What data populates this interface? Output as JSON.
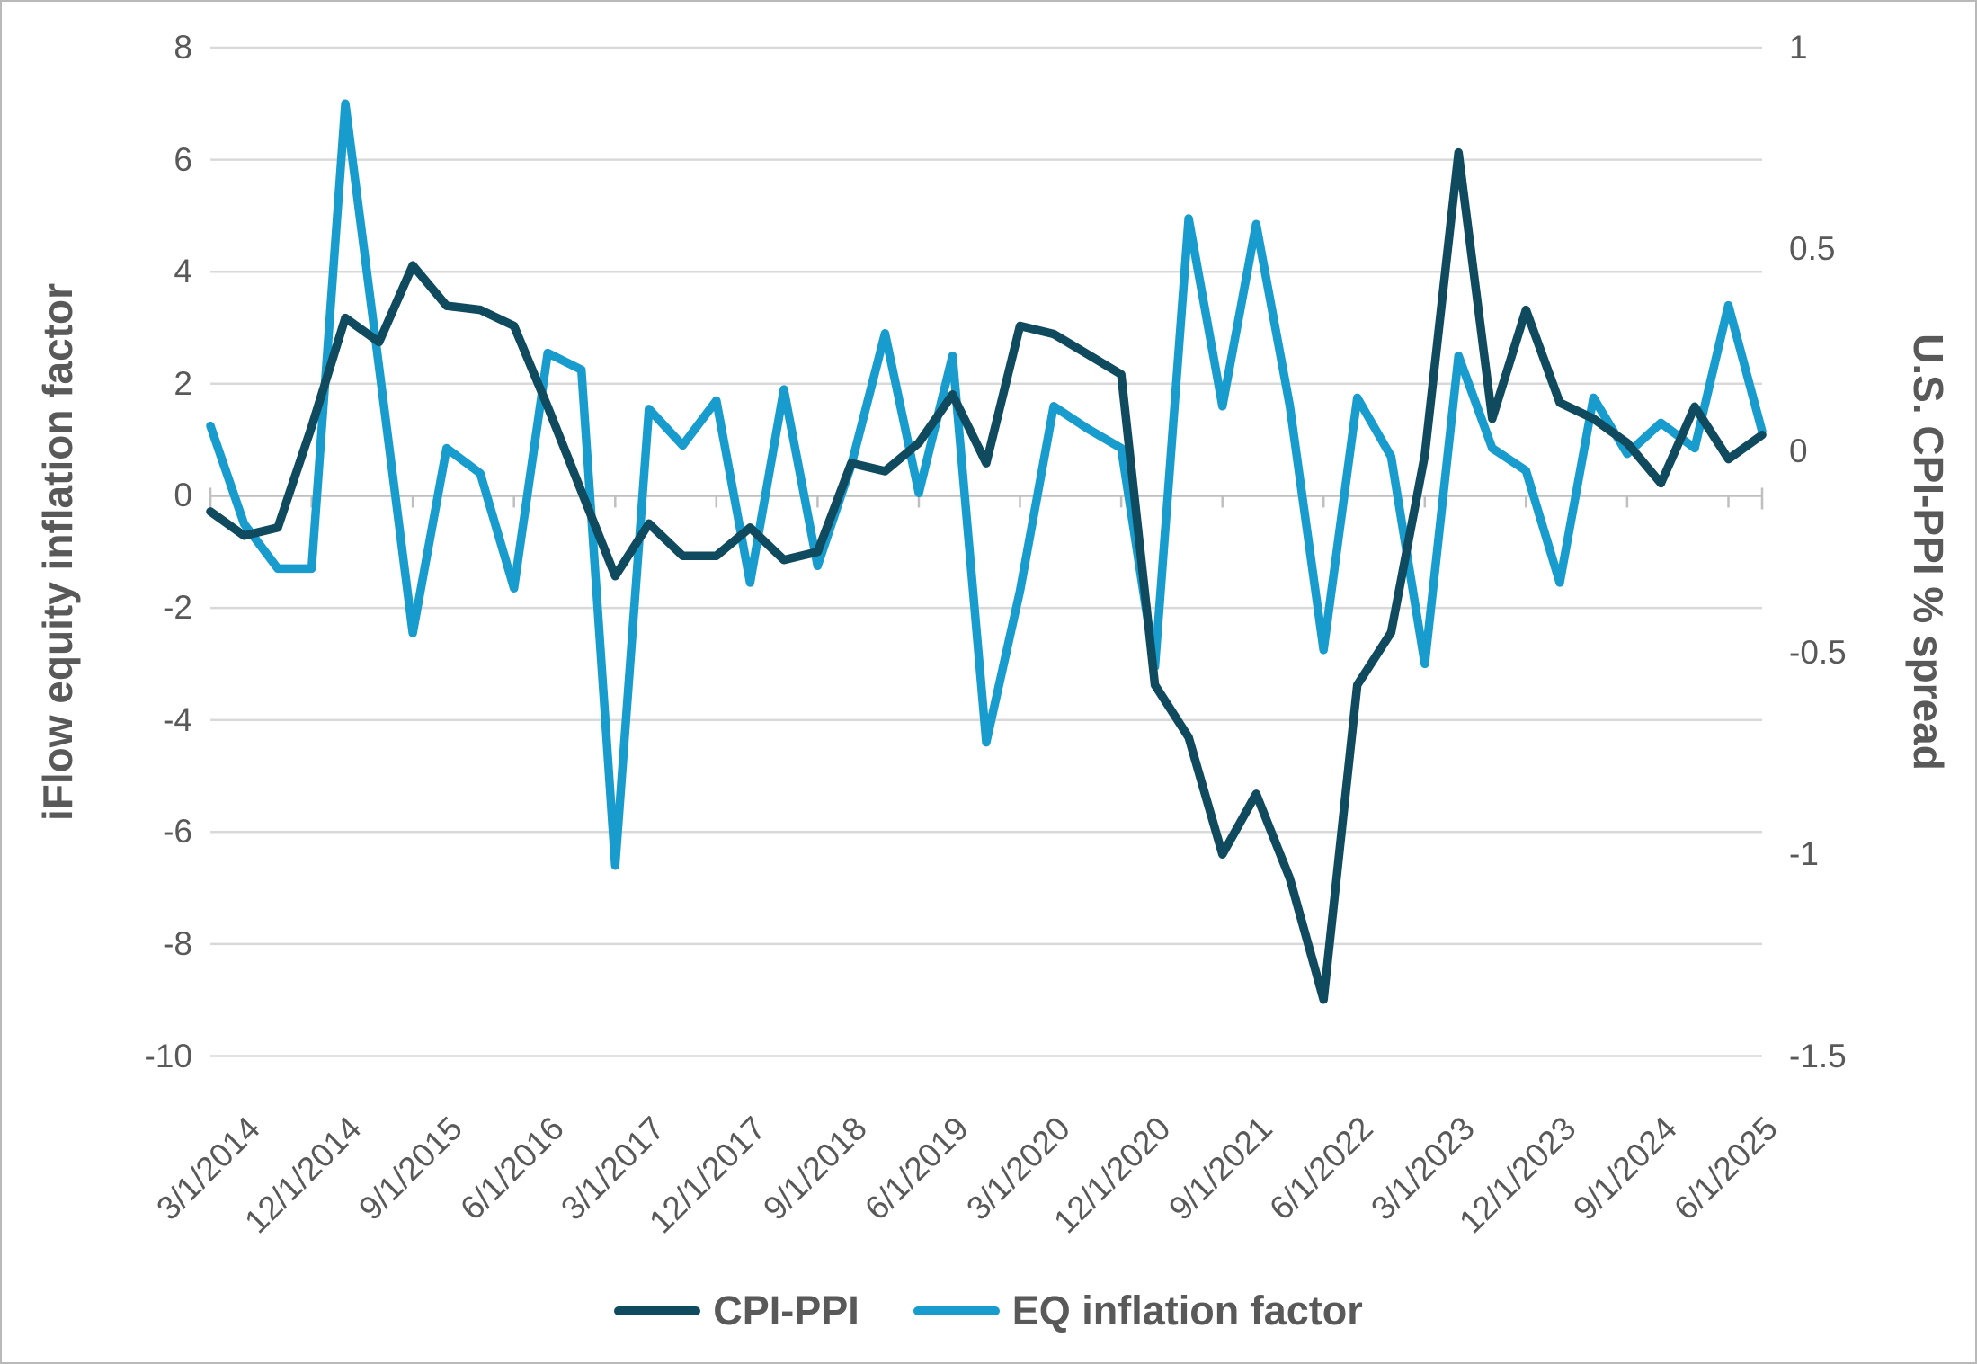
{
  "chart_data": {
    "type": "line",
    "title": "",
    "x_axis": {
      "categories": [
        "3/1/2014",
        "6/1/2014",
        "9/1/2014",
        "12/1/2014",
        "3/1/2015",
        "6/1/2015",
        "9/1/2015",
        "12/1/2015",
        "3/1/2016",
        "6/1/2016",
        "9/1/2016",
        "12/1/2016",
        "3/1/2017",
        "6/1/2017",
        "9/1/2017",
        "12/1/2017",
        "3/1/2018",
        "6/1/2018",
        "9/1/2018",
        "12/1/2018",
        "3/1/2019",
        "6/1/2019",
        "9/1/2019",
        "12/1/2019",
        "3/1/2020",
        "6/1/2020",
        "9/1/2020",
        "12/1/2020",
        "3/1/2021",
        "6/1/2021",
        "9/1/2021",
        "12/1/2021",
        "3/1/2022",
        "6/1/2022",
        "9/1/2022",
        "12/1/2022",
        "3/1/2023",
        "6/1/2023",
        "9/1/2023",
        "12/1/2023",
        "3/1/2024",
        "6/1/2024",
        "9/1/2024",
        "12/1/2024",
        "3/1/2025",
        "6/1/2025",
        "9/1/2025"
      ],
      "tick_labels": [
        "3/1/2014",
        "12/1/2014",
        "9/1/2015",
        "6/1/2016",
        "3/1/2017",
        "12/1/2017",
        "9/1/2018",
        "6/1/2019",
        "3/1/2020",
        "12/1/2020",
        "9/1/2021",
        "6/1/2022",
        "3/1/2023",
        "12/1/2023",
        "9/1/2024",
        "6/1/2025"
      ],
      "tick_every": 3
    },
    "y_axis_left": {
      "label": "iFlow equity inflation factor",
      "tick_labels": [
        "8",
        "6",
        "4",
        "2",
        "0",
        "-2",
        "-4",
        "-6",
        "-8",
        "-10"
      ],
      "min": -10,
      "max": 8
    },
    "y_axis_right": {
      "label": "U.S. CPI-PPI % spread",
      "tick_labels": [
        "1",
        "0.5",
        "0",
        "-0.5",
        "-1",
        "-1.5"
      ],
      "min": -1.5,
      "max": 1
    },
    "series": [
      {
        "name": "EQ inflation factor",
        "axis": "left",
        "color": "#189ccd",
        "values": [
          1.25,
          -0.5,
          -1.3,
          -1.3,
          7.0,
          2.3,
          -2.45,
          0.85,
          0.4,
          -1.65,
          2.55,
          2.25,
          -6.6,
          1.55,
          0.9,
          1.7,
          -1.55,
          1.9,
          -1.25,
          0.55,
          2.9,
          0.05,
          2.5,
          -4.4,
          -1.7,
          1.6,
          1.2,
          0.85,
          -3.05,
          4.95,
          1.6,
          4.85,
          1.6,
          -2.75,
          1.75,
          0.7,
          -3.0,
          2.5,
          0.85,
          0.45,
          -1.55,
          1.75,
          0.75,
          1.3,
          0.85,
          3.4,
          1.15
        ]
      },
      {
        "name": "CPI-PPI",
        "axis": "right",
        "color": "#0f4a5e",
        "values": [
          -0.15,
          -0.21,
          -0.19,
          0.06,
          0.33,
          0.27,
          0.46,
          0.36,
          0.35,
          0.31,
          0.11,
          -0.1,
          -0.31,
          -0.18,
          -0.26,
          -0.26,
          -0.19,
          -0.27,
          -0.25,
          -0.03,
          -0.05,
          0.02,
          0.14,
          -0.03,
          0.31,
          0.29,
          0.24,
          0.19,
          -0.58,
          -0.71,
          -1.0,
          -0.85,
          -1.06,
          -1.36,
          -0.58,
          -0.45,
          -0.01,
          0.74,
          0.08,
          0.35,
          0.12,
          0.08,
          0.02,
          -0.08,
          0.11,
          -0.02,
          0.04
        ]
      }
    ],
    "legend": {
      "position": "bottom",
      "entries": [
        "CPI-PPI",
        "EQ inflation factor"
      ]
    },
    "grid": {
      "gridline_color": "#d9d9d9",
      "axis_color": "#bfbfbf",
      "text_color": "#595959"
    }
  }
}
